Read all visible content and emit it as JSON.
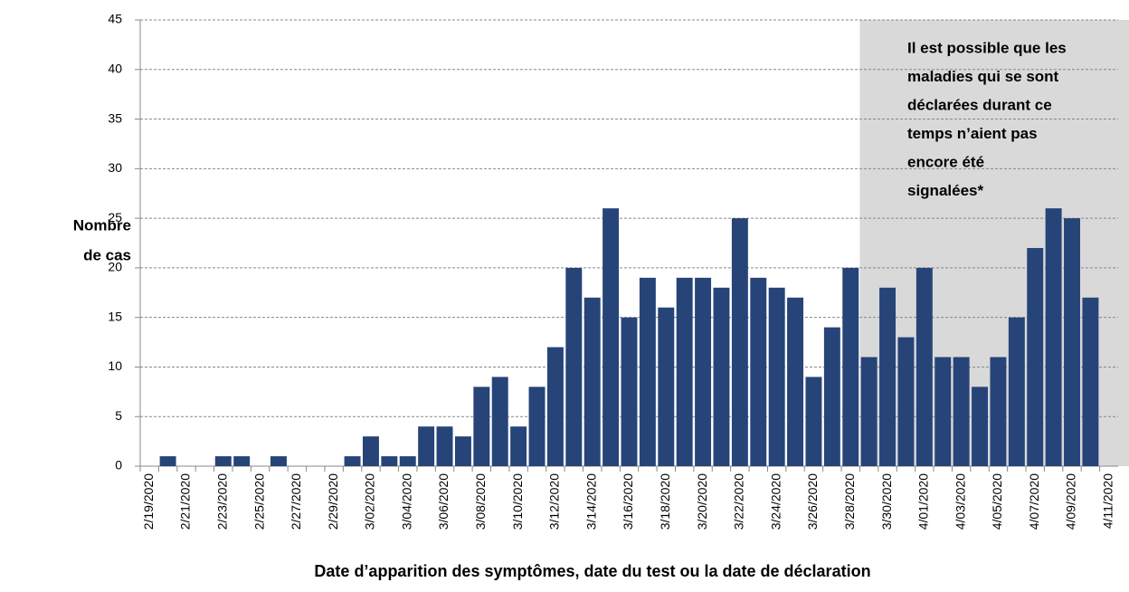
{
  "chart_data": {
    "type": "bar",
    "annotation": [
      "Il est possible que les",
      "maladies qui se sont",
      "déclarées durant ce",
      "temps n’aient pas",
      "encore été",
      "signalées*"
    ],
    "ylabel": [
      "Nombre",
      "de cas"
    ],
    "xlabel": "Date d’apparition des symptômes, date du test ou la date de déclaration",
    "categories": [
      "2/19/2020",
      null,
      "2/21/2020",
      null,
      "2/23/2020",
      null,
      "2/25/2020",
      null,
      "2/27/2020",
      null,
      "2/29/2020",
      null,
      "3/02/2020",
      null,
      "3/04/2020",
      null,
      "3/06/2020",
      null,
      "3/08/2020",
      null,
      "3/10/2020",
      null,
      "3/12/2020",
      null,
      "3/14/2020",
      null,
      "3/16/2020",
      null,
      "3/18/2020",
      null,
      "3/20/2020",
      null,
      "3/22/2020",
      null,
      "3/24/2020",
      null,
      "3/26/2020",
      null,
      "3/28/2020",
      null,
      "3/30/2020",
      null,
      "4/01/2020",
      null,
      "4/03/2020",
      null,
      "4/05/2020",
      null,
      "4/07/2020",
      null,
      "4/09/2020",
      null,
      "4/11/2020"
    ],
    "values": [
      0,
      1,
      0,
      0,
      1,
      1,
      0,
      1,
      0,
      0,
      0,
      1,
      3,
      1,
      1,
      4,
      4,
      3,
      8,
      9,
      4,
      8,
      12,
      20,
      17,
      26,
      15,
      19,
      16,
      19,
      19,
      18,
      25,
      19,
      18,
      17,
      9,
      14,
      20,
      11,
      18,
      13,
      20,
      11,
      11,
      8,
      11,
      15,
      22,
      26,
      25,
      17,
      null
    ],
    "color": "#264478",
    "ylim": [
      0,
      45
    ],
    "yticks": [
      0,
      5,
      10,
      15,
      20,
      25,
      30,
      35,
      40,
      45
    ],
    "grid": true
  }
}
